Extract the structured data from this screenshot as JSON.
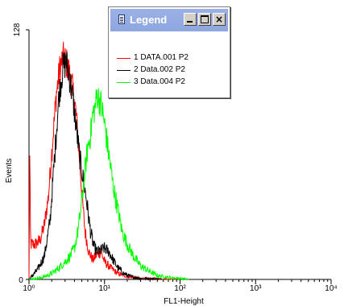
{
  "chart_data": {
    "type": "line",
    "title": "",
    "xlabel": "FL1-Height",
    "ylabel": "Events",
    "x_scale": "log",
    "xlim": [
      1,
      10000
    ],
    "ylim": [
      0,
      128
    ],
    "x_tick_labels": [
      "10⁰",
      "10¹",
      "10²",
      "10³",
      "10⁴"
    ],
    "y_tick_labels": [
      "0",
      "128"
    ],
    "legend": "top-center",
    "series": [
      {
        "name": "1 DATA.001  P2",
        "color": "#ff0000",
        "x": [
          1,
          1.02,
          1.05,
          1.2,
          1.4,
          1.6,
          1.8,
          2.0,
          2.3,
          2.6,
          2.9,
          3.2,
          3.5,
          3.8,
          4.2,
          4.6,
          5.0,
          5.5,
          6.2,
          7,
          8,
          9,
          10,
          12,
          15,
          20,
          30,
          50,
          100
        ],
        "y": [
          0,
          66,
          18,
          18,
          20,
          28,
          42,
          65,
          95,
          110,
          114,
          110,
          104,
          97,
          85,
          65,
          45,
          25,
          14,
          10,
          13,
          14,
          9,
          6,
          3,
          1.5,
          0.5,
          0.2,
          0
        ]
      },
      {
        "name": "2 Data.002  P2",
        "color": "#000000",
        "x": [
          1,
          1.3,
          1.6,
          1.9,
          2.2,
          2.5,
          2.8,
          3.1,
          3.4,
          3.7,
          4.0,
          4.4,
          4.8,
          5.3,
          5.8,
          6.5,
          7.2,
          8,
          9,
          10,
          11.5,
          13,
          15,
          18,
          22,
          30,
          45,
          60
        ],
        "y": [
          0,
          5,
          12,
          30,
          65,
          95,
          108,
          112,
          105,
          96,
          86,
          72,
          60,
          50,
          40,
          25,
          17,
          14,
          15,
          16,
          14,
          10,
          6,
          3,
          1.5,
          0.5,
          0.2,
          0
        ]
      },
      {
        "name": "3 Data.004  P2",
        "color": "#00ff00",
        "x": [
          1,
          1.5,
          2,
          2.5,
          3,
          3.5,
          4,
          4.5,
          5,
          5.5,
          6,
          6.5,
          7,
          7.5,
          8,
          8.5,
          9,
          10,
          11,
          12,
          13,
          15,
          17,
          20,
          25,
          30,
          40,
          50,
          70,
          100,
          130
        ],
        "y": [
          0,
          1,
          3,
          6,
          9,
          12,
          16,
          26,
          40,
          55,
          68,
          74,
          85,
          88,
          95,
          92,
          90,
          80,
          68,
          58,
          48,
          36,
          25,
          18,
          11,
          7,
          4,
          2,
          1,
          0.5,
          0
        ]
      }
    ]
  },
  "legend_window": {
    "title": "Legend",
    "buttons": {
      "minimize": "_",
      "maximize": "□",
      "close": "×"
    }
  }
}
